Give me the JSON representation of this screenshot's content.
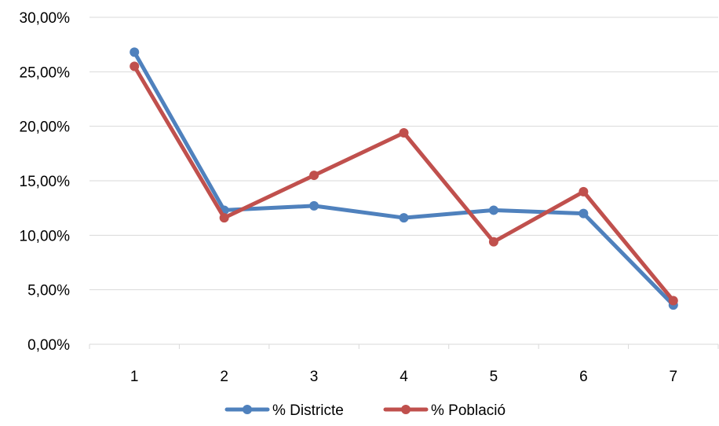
{
  "chart_data": {
    "type": "line",
    "x": [
      1,
      2,
      3,
      4,
      5,
      6,
      7
    ],
    "x_tick_labels": [
      "1",
      "2",
      "3",
      "4",
      "5",
      "6",
      "7"
    ],
    "y_ticks": [
      0,
      5,
      10,
      15,
      20,
      25,
      30
    ],
    "y_tick_labels": [
      "0,00%",
      "5,00%",
      "10,00%",
      "15,00%",
      "20,00%",
      "25,00%",
      "30,00%"
    ],
    "ylim": [
      0,
      30
    ],
    "grid": "horizontal",
    "legend_position": "bottom-center",
    "series": [
      {
        "name": "% Districte",
        "color": "#4f81bd",
        "values": [
          26.8,
          12.3,
          12.7,
          11.6,
          12.3,
          12.0,
          3.6
        ]
      },
      {
        "name": "% Població",
        "color": "#c0504d",
        "values": [
          25.5,
          11.6,
          15.5,
          19.4,
          9.4,
          14.0,
          4.0
        ]
      }
    ]
  }
}
